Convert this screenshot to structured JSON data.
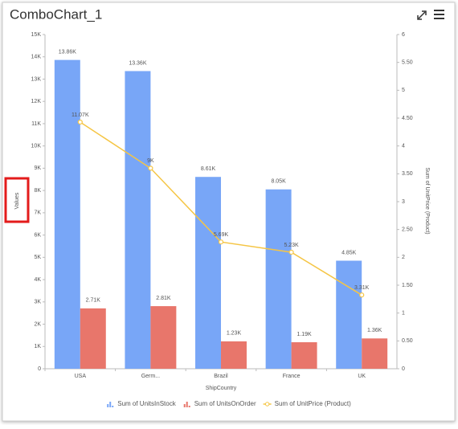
{
  "chart_data": {
    "type": "combo",
    "title": "ComboChart_1",
    "y_label": "Values",
    "y2_label": "Sum of UnitPrice (Product)",
    "x_label": "ShipCountry",
    "categories": [
      "USA",
      "Germ...",
      "Brazil",
      "France",
      "UK"
    ],
    "series": [
      {
        "name": "Sum of UnitsInStock",
        "type": "bar",
        "color": "#78a6f7",
        "values": [
          13860,
          13360,
          8610,
          8050,
          4850
        ],
        "value_labels": [
          "13.86K",
          "13.36K",
          "8.61K",
          "8.05K",
          "4.85K"
        ]
      },
      {
        "name": "Sum of UnitsOnOrder",
        "type": "bar",
        "color": "#e8766b",
        "values": [
          2710,
          2810,
          1230,
          1190,
          1360
        ],
        "value_labels": [
          "2.71K",
          "2.81K",
          "1.23K",
          "1.19K",
          "1.36K"
        ]
      },
      {
        "name": "Sum of UnitPrice (Product)",
        "type": "line",
        "color": "#f5c544",
        "values": [
          11070,
          9000,
          5690,
          5230,
          3310
        ],
        "value_labels": [
          "11.07K",
          "9K",
          "5.69K",
          "5.23K",
          "3.31K"
        ]
      }
    ],
    "ylim": [
      0,
      15000
    ],
    "yticks": [
      0,
      {
        "value": 1000,
        "label": "1K"
      },
      {
        "value": 2000,
        "label": "2K"
      },
      {
        "value": 3000,
        "label": "3K"
      },
      {
        "value": 4000,
        "label": "4K"
      },
      {
        "value": 5000,
        "label": "5K"
      },
      {
        "value": 6000,
        "label": "6K"
      },
      {
        "value": 7000,
        "label": "7K"
      },
      {
        "value": 8000,
        "label": "8K"
      },
      {
        "value": 9000,
        "label": "9K"
      },
      {
        "value": 10000,
        "label": "10K"
      },
      {
        "value": 11000,
        "label": "11K"
      },
      {
        "value": 12000,
        "label": "12K"
      },
      {
        "value": 13000,
        "label": "13K"
      },
      {
        "value": 14000,
        "label": "14K"
      },
      {
        "value": 15000,
        "label": "15K"
      }
    ],
    "y2lim": [
      0,
      6
    ],
    "y2ticks": [
      0,
      {
        "value": 0.5,
        "label": "0.50"
      },
      1,
      {
        "value": 1.5,
        "label": "1.50"
      },
      2,
      {
        "value": 2.5,
        "label": "2.50"
      },
      3,
      {
        "value": 3.5,
        "label": "3.50"
      },
      4,
      {
        "value": 4.5,
        "label": "4.50"
      },
      5,
      {
        "value": 5.5,
        "label": "5.50"
      },
      6
    ],
    "grid": false,
    "legend": "bottom"
  }
}
